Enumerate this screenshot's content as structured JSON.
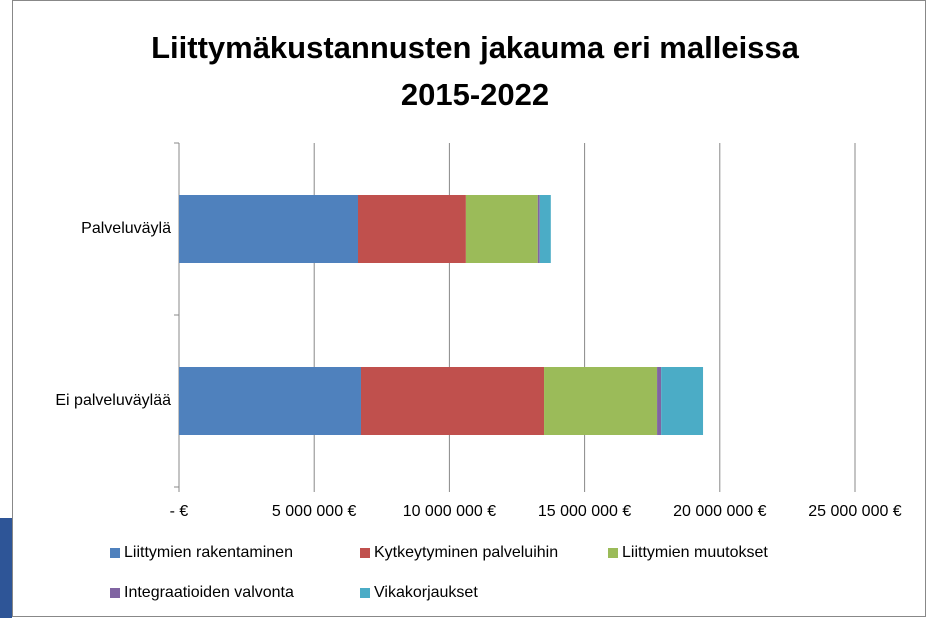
{
  "chart_data": {
    "type": "stacked-barh",
    "title": [
      "Liittymäkustannusten jakauma eri malleissa",
      "2015-2022"
    ],
    "categories": [
      "Palveluväylä",
      "Ei palveluväylää"
    ],
    "series": [
      {
        "name": "Liittymien rakentaminen",
        "color": "#4f81bd",
        "values": [
          6620000,
          6730000
        ]
      },
      {
        "name": "Kytkeytyminen palveluihin",
        "color": "#c0504d",
        "values": [
          3990000,
          6770000
        ]
      },
      {
        "name": "Liittymien muutokset",
        "color": "#9bbb59",
        "values": [
          2660000,
          4180000
        ]
      },
      {
        "name": "Integraatioiden valvonta",
        "color": "#8064a2",
        "values": [
          70000,
          150000
        ]
      },
      {
        "name": "Vikakorjaukset",
        "color": "#4bacc6",
        "values": [
          410000,
          1550000
        ]
      }
    ],
    "xlim": [
      0,
      25000000
    ],
    "xticks": [
      {
        "value": 0,
        "label": "-  €"
      },
      {
        "value": 5000000,
        "label": "5 000 000 €"
      },
      {
        "value": 10000000,
        "label": "10 000 000 €"
      },
      {
        "value": 15000000,
        "label": "15 000 000 €"
      },
      {
        "value": 20000000,
        "label": "20 000 000 €"
      },
      {
        "value": 25000000,
        "label": "25 000 000 €"
      }
    ],
    "grid": true
  }
}
